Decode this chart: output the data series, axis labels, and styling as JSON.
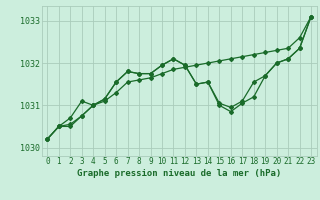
{
  "background_color": "#cceedd",
  "grid_color": "#aaccbb",
  "line_color": "#1a6b2a",
  "title": "Graphe pression niveau de la mer (hPa)",
  "xlim": [
    -0.5,
    23.5
  ],
  "ylim": [
    1029.8,
    1033.35
  ],
  "yticks": [
    1030,
    1031,
    1032,
    1033
  ],
  "xticks": [
    0,
    1,
    2,
    3,
    4,
    5,
    6,
    7,
    8,
    9,
    10,
    11,
    12,
    13,
    14,
    15,
    16,
    17,
    18,
    19,
    20,
    21,
    22,
    23
  ],
  "line1": [
    1030.2,
    1030.5,
    1030.5,
    1030.75,
    1031.0,
    1031.15,
    1031.55,
    1031.8,
    1031.75,
    1031.75,
    1031.95,
    1032.1,
    1031.95,
    1031.5,
    1031.55,
    1031.05,
    1030.95,
    1031.1,
    1031.55,
    1031.7,
    1032.0,
    1032.1,
    1032.35,
    1033.1
  ],
  "line2": [
    1030.2,
    1030.5,
    1030.7,
    1031.1,
    1031.0,
    1031.15,
    1031.55,
    1031.8,
    1031.75,
    1031.75,
    1031.95,
    1032.1,
    1031.95,
    1031.5,
    1031.55,
    1031.0,
    1030.85,
    1031.05,
    1031.2,
    1031.7,
    1032.0,
    1032.1,
    1032.35,
    1033.1
  ],
  "line3": [
    1030.2,
    1030.5,
    1030.55,
    1030.75,
    1031.0,
    1031.1,
    1031.3,
    1031.55,
    1031.6,
    1031.65,
    1031.75,
    1031.85,
    1031.9,
    1031.95,
    1032.0,
    1032.05,
    1032.1,
    1032.15,
    1032.2,
    1032.25,
    1032.3,
    1032.35,
    1032.6,
    1033.1
  ],
  "title_fontsize": 6.5,
  "tick_fontsize": 5.5,
  "ytick_fontsize": 6.0
}
